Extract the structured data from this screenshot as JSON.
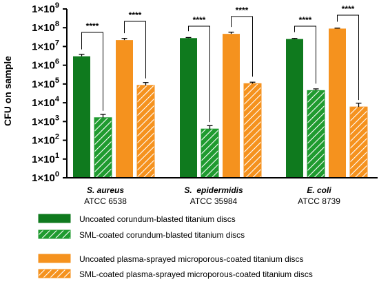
{
  "chart_data": {
    "type": "bar",
    "ylabel": "CFU on sample",
    "yscale": "log",
    "ylim": [
      1,
      1000000000
    ],
    "yticks": [
      {
        "base": "1×10",
        "exp": "0"
      },
      {
        "base": "1×10",
        "exp": "1"
      },
      {
        "base": "1×10",
        "exp": "2"
      },
      {
        "base": "1×10",
        "exp": "3"
      },
      {
        "base": "1×10",
        "exp": "4"
      },
      {
        "base": "1×10",
        "exp": "5"
      },
      {
        "base": "1×10",
        "exp": "6"
      },
      {
        "base": "1×10",
        "exp": "7"
      },
      {
        "base": "1×10",
        "exp": "8"
      },
      {
        "base": "1×10",
        "exp": "9"
      }
    ],
    "categories": [
      {
        "name": "S. aureus",
        "strain": "ATCC 6538"
      },
      {
        "name": "S.  epidermidis",
        "strain": "ATCC 35984"
      },
      {
        "name": "E. coli",
        "strain": "ATCC 8739"
      }
    ],
    "series": [
      {
        "name": "Uncoated corundum-blasted titanium discs",
        "color": "#0f7a1e",
        "pattern": "solid",
        "values": [
          3000000,
          28000000,
          25000000
        ],
        "err_upper": [
          3800000,
          30000000,
          27000000
        ]
      },
      {
        "name": "SML-coated corundum-blasted titanium discs",
        "color": "#1f9b2f",
        "pattern": "hatched",
        "values": [
          1600,
          400,
          45000
        ],
        "err_upper": [
          2400,
          600,
          55000
        ]
      },
      {
        "name": "Uncoated plasma-sprayed microporous-coated titanium discs",
        "color": "#f5921e",
        "pattern": "solid",
        "values": [
          22000000,
          47000000,
          90000000
        ],
        "err_upper": [
          27000000,
          58000000,
          95000000
        ]
      },
      {
        "name": "SML-coated plasma-sprayed microporous-coated titanium discs",
        "color": "#f5921e",
        "pattern": "hatched",
        "values": [
          85000,
          105000,
          6000
        ],
        "err_upper": [
          120000,
          125000,
          9500
        ]
      }
    ],
    "annotations": [
      {
        "group": 0,
        "pair": [
          0,
          1
        ],
        "label": "****"
      },
      {
        "group": 0,
        "pair": [
          2,
          3
        ],
        "label": "****"
      },
      {
        "group": 1,
        "pair": [
          0,
          1
        ],
        "label": "****"
      },
      {
        "group": 1,
        "pair": [
          2,
          3
        ],
        "label": "****"
      },
      {
        "group": 2,
        "pair": [
          0,
          1
        ],
        "label": "****"
      },
      {
        "group": 2,
        "pair": [
          2,
          3
        ],
        "label": "****"
      }
    ],
    "legend_position": "bottom"
  }
}
